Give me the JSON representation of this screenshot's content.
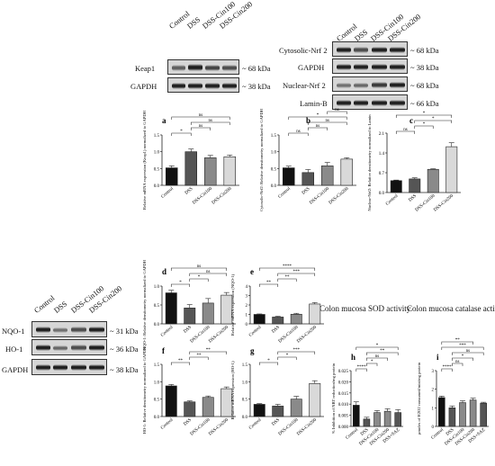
{
  "blots": {
    "keap": {
      "lanes": [
        "Control",
        "DSS",
        "DSS-Cin100",
        "DSS-Cin200"
      ],
      "rows": [
        {
          "label": "Keap1",
          "kda": "~ 68 kDa"
        },
        {
          "label": "GAPDH",
          "kda": "~ 38 kDa"
        }
      ]
    },
    "nrf2": {
      "lanes": [
        "Control",
        "DSS",
        "DSS-Cin100",
        "DSS-Cin200"
      ],
      "rows": [
        {
          "label": "Cytosolic-Nrf 2",
          "kda": "~ 68 kDa"
        },
        {
          "label": "GAPDH",
          "kda": "~ 38 kDa"
        },
        {
          "label": "Nuclear-Nrf 2",
          "kda": "~ 68 kDa"
        },
        {
          "label": "Lamin-B",
          "kda": "~ 66 kDa"
        }
      ]
    },
    "nqo": {
      "lanes": [
        "Control",
        "DSS",
        "DSS-Cin100",
        "DSS-Cin200"
      ],
      "rows": [
        {
          "label": "NQO-1",
          "kda": "~ 31 kDa"
        },
        {
          "label": "HO-1",
          "kda": "~ 36 kDa"
        },
        {
          "label": "GAPDH",
          "kda": "~ 38 kDa"
        }
      ]
    }
  },
  "chart_titles": {
    "h": "Colon mucosa SOD activity",
    "i": "Colon mucosa catalase activity"
  },
  "colors": {
    "black": "#111111",
    "dark": "#555555",
    "mid": "#8a8a8a",
    "light": "#d9d9d9",
    "white": "#ffffff"
  },
  "chart_data": [
    {
      "type": "bar",
      "letter": "a",
      "ylabel": "Relative mRNA expression (Keap1) normalized to GAPDH",
      "categories": [
        "Control",
        "DSS",
        "DSS-Cin100",
        "DSS-Cin200"
      ],
      "values": [
        0.52,
        1.0,
        0.82,
        0.85
      ],
      "errors": [
        0.06,
        0.08,
        0.07,
        0.05
      ],
      "ylim": [
        0,
        1.5
      ],
      "yticks": [
        "0.0",
        "0.5",
        "1.0",
        "1.5"
      ],
      "sig": [
        "*",
        "ns",
        "ns",
        "ns"
      ]
    },
    {
      "type": "bar",
      "letter": "b",
      "ylabel": "Cytosolic-Nrf2: Relative densitometry normalized to GAPDH",
      "categories": [
        "Control",
        "DSS",
        "DSS-Cin100",
        "DSS-Cin200"
      ],
      "values": [
        0.52,
        0.38,
        0.58,
        0.78
      ],
      "errors": [
        0.05,
        0.09,
        0.1,
        0.04
      ],
      "ylim": [
        0,
        1.5
      ],
      "yticks": [
        "0.0",
        "0.5",
        "1.0",
        "1.5"
      ],
      "sig": [
        "ns",
        "ns",
        "ns",
        "*",
        "ns"
      ]
    },
    {
      "type": "bar",
      "letter": "c",
      "ylabel": "Nuclear-Nrf2: Relative densitometry normalized to Lamin",
      "categories": [
        "Control",
        "DSS",
        "DSS-Cin100",
        "DSS-Cin200"
      ],
      "values": [
        0.42,
        0.48,
        0.82,
        1.62
      ],
      "errors": [
        0.02,
        0.04,
        0.02,
        0.14
      ],
      "ylim": [
        0,
        2.1
      ],
      "yticks": [
        "0.0",
        "0.7",
        "1.4",
        "2.1"
      ],
      "sig": [
        "ns",
        "*",
        "*",
        "*"
      ]
    },
    {
      "type": "bar",
      "letter": "d",
      "ylabel": "NQO-1: Relative densitometry normalized to GAPDH",
      "categories": [
        "Control",
        "DSS",
        "DSS-Cin100",
        "DSS-Cin200"
      ],
      "values": [
        0.82,
        0.42,
        0.55,
        0.76
      ],
      "errors": [
        0.07,
        0.09,
        0.12,
        0.07
      ],
      "ylim": [
        0,
        1.0
      ],
      "yticks": [
        "0.0",
        "0.5",
        "1.0"
      ],
      "sig": [
        "*",
        "*",
        "ns",
        "ns"
      ]
    },
    {
      "type": "bar",
      "letter": "e",
      "ylabel": "Relative mRNA expression (NQO-1)",
      "categories": [
        "Control",
        "DSS",
        "DSS-Cin100",
        "DSS-Cin200"
      ],
      "values": [
        1.0,
        0.72,
        1.02,
        2.1
      ],
      "errors": [
        0.05,
        0.08,
        0.1,
        0.15
      ],
      "ylim": [
        0,
        4
      ],
      "yticks": [
        "0",
        "1",
        "2",
        "3",
        "4"
      ],
      "sig": [
        "**",
        "**",
        "***",
        "****"
      ]
    },
    {
      "type": "bar",
      "letter": "f",
      "ylabel": "HO-1: Relative densitometry normalized to GAPDH",
      "categories": [
        "Control",
        "DSS",
        "DSS-Cin100",
        "DSS-Cin200"
      ],
      "values": [
        0.88,
        0.42,
        0.55,
        0.8
      ],
      "errors": [
        0.04,
        0.03,
        0.04,
        0.05
      ],
      "ylim": [
        0,
        1.5
      ],
      "yticks": [
        "0.0",
        "0.5",
        "1.0",
        "1.5"
      ],
      "sig": [
        "**",
        "**",
        "**"
      ]
    },
    {
      "type": "bar",
      "letter": "g",
      "ylabel": "Relative mRNA expression (HO-1)",
      "categories": [
        "Control",
        "DSS",
        "DSS-Cin100",
        "DSS-Cin200"
      ],
      "values": [
        0.35,
        0.3,
        0.5,
        0.95
      ],
      "errors": [
        0.02,
        0.05,
        0.08,
        0.08
      ],
      "ylim": [
        0,
        1.5
      ],
      "yticks": [
        "0.0",
        "0.5",
        "1.0",
        "1.5"
      ],
      "sig": [
        "*",
        "*",
        "***"
      ]
    },
    {
      "type": "bar",
      "letter": "h",
      "ylabel": "% Inhibition of NBT reduction/mg protein",
      "title": "Colon mucosa SOD activity",
      "categories": [
        "Control",
        "DSS",
        "DSS-Cin100",
        "DSS-Cin200",
        "DSS+SAZ"
      ],
      "values": [
        0.0095,
        0.0033,
        0.0062,
        0.0068,
        0.0062
      ],
      "errors": [
        0.0015,
        0.0008,
        0.0009,
        0.0011,
        0.0013
      ],
      "ylim": [
        0,
        0.025
      ],
      "yticks": [
        "0.000",
        "0.005",
        "0.010",
        "0.015",
        "0.020",
        "0.025"
      ],
      "sig": [
        "****",
        "*",
        "ns",
        "**",
        "*"
      ]
    },
    {
      "type": "bar",
      "letter": "i",
      "ylabel": "μmoles of H2O2 consumed/min/mg protein",
      "title": "Colon mucosa catalase activity",
      "categories": [
        "Control",
        "DSS",
        "DSS-Cin100",
        "DSS-Cin200",
        "DSS+SAZ"
      ],
      "values": [
        1.55,
        1.0,
        1.28,
        1.42,
        1.25
      ],
      "errors": [
        0.08,
        0.1,
        0.1,
        0.1,
        0.05
      ],
      "ylim": [
        0,
        3
      ],
      "yticks": [
        "0",
        "1",
        "2",
        "3"
      ],
      "sig": [
        "****",
        "ns",
        "*",
        "ns",
        "***",
        "**"
      ]
    }
  ]
}
